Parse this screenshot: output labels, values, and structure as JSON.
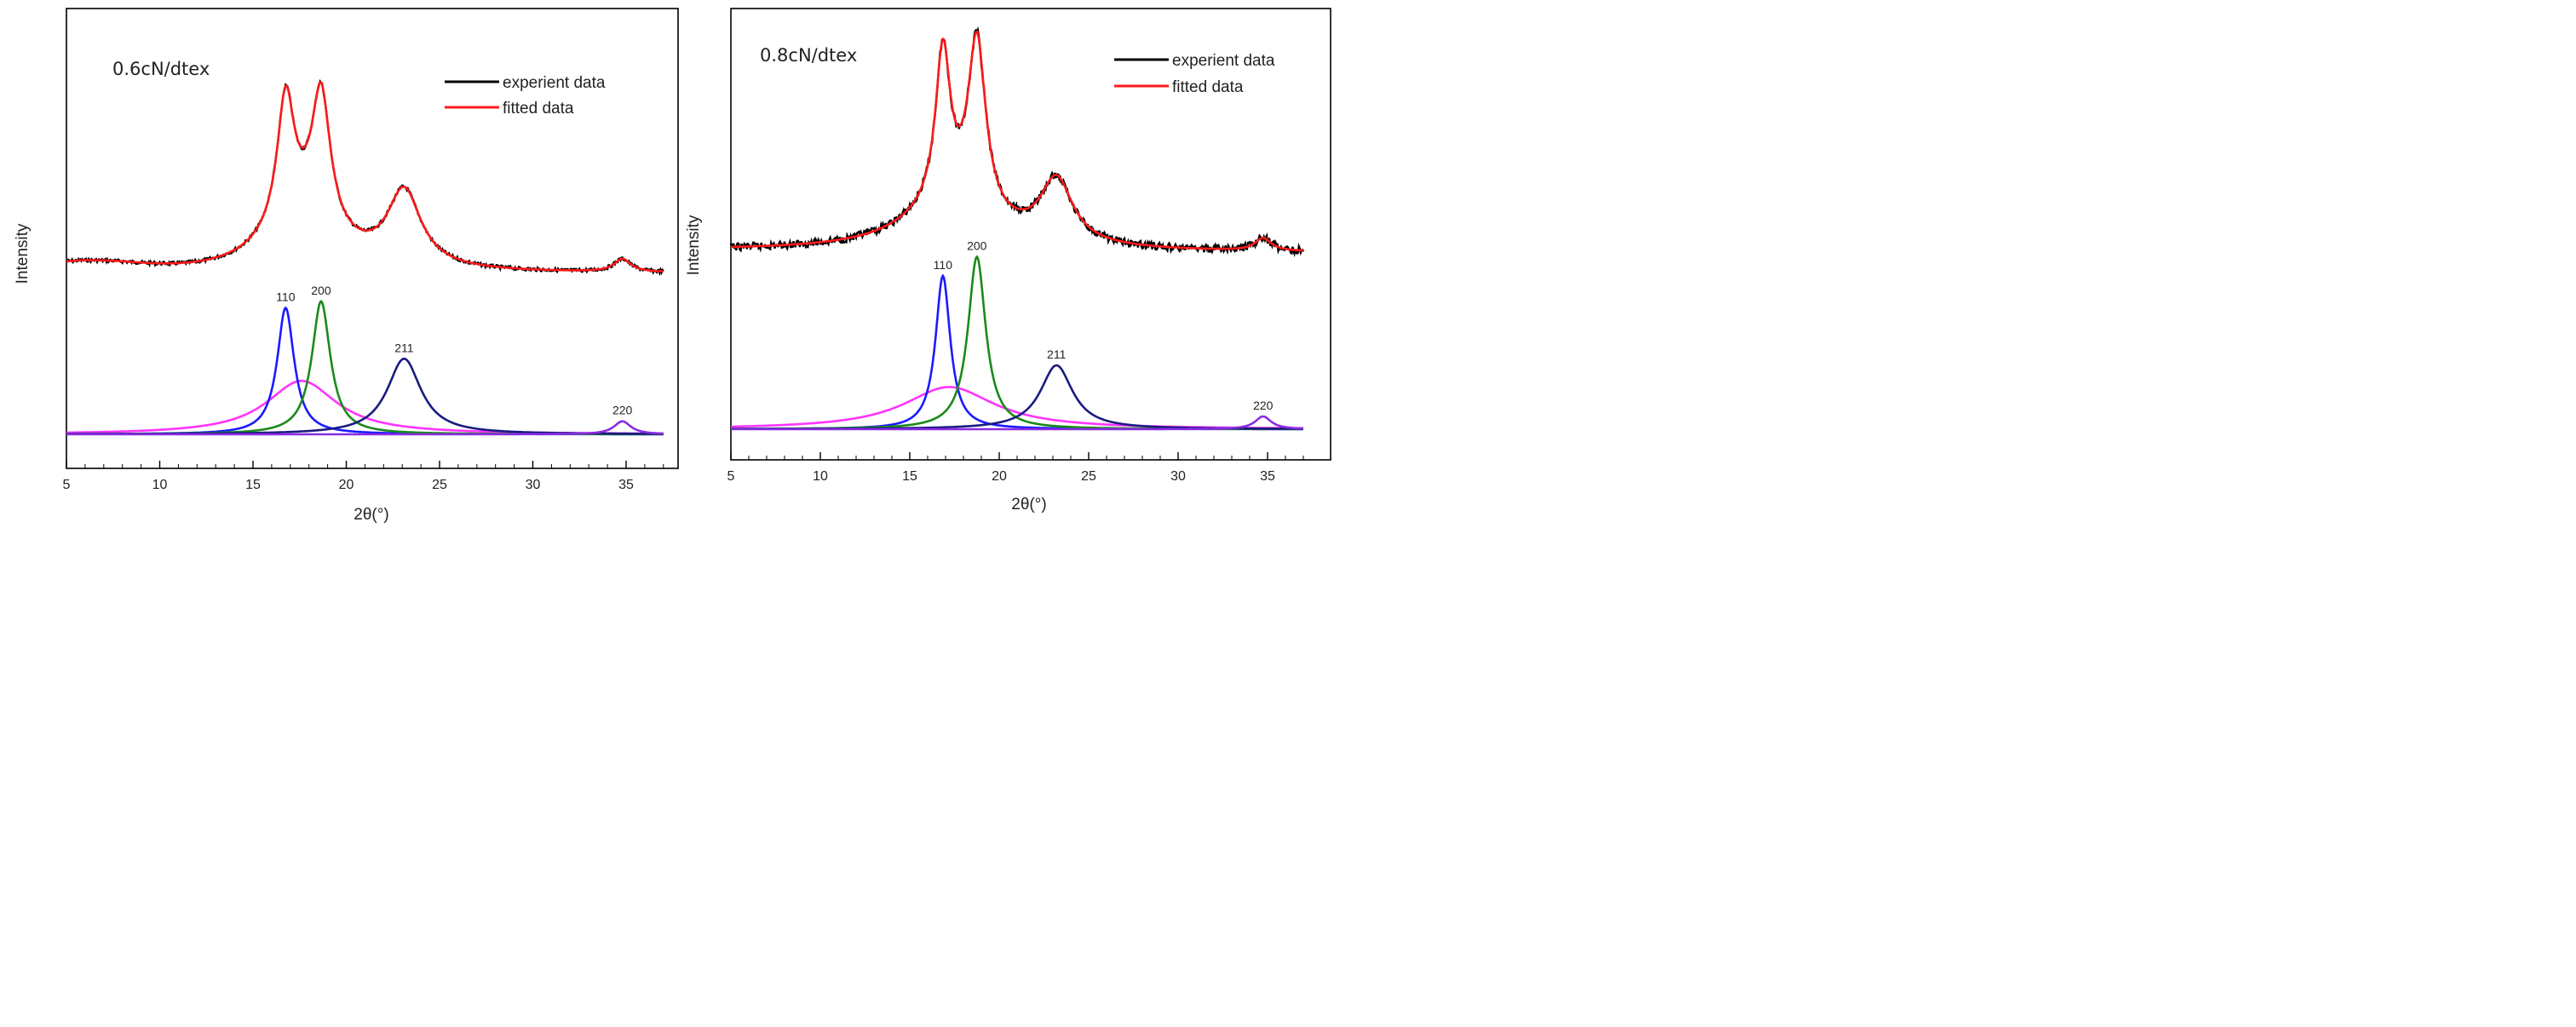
{
  "chart_data": [
    {
      "type": "line",
      "panel_label": "0.6cN/dtex",
      "xlabel": "2θ(°)",
      "ylabel": "Intensity",
      "xlim": [
        5,
        37
      ],
      "xticks": [
        5,
        10,
        15,
        20,
        25,
        30,
        35
      ],
      "legend": [
        {
          "name": "experient data",
          "color": "#000000"
        },
        {
          "name": "fitted data",
          "color": "#ff1a1a"
        }
      ],
      "legend_position": "top-right",
      "grid": false,
      "baseline": 0.22,
      "fit_peaks": [
        {
          "label": "",
          "center": 17.6,
          "height": 0.41,
          "width": 2.3,
          "color": "#ff33ff"
        },
        {
          "label": "110",
          "center": 16.75,
          "height": 0.97,
          "width": 0.55,
          "color": "#1a1aff"
        },
        {
          "label": "200",
          "center": 18.65,
          "height": 1.02,
          "width": 0.6,
          "color": "#1a8a1a"
        },
        {
          "label": "211",
          "center": 23.1,
          "height": 0.58,
          "width": 1.1,
          "color": "#1a1a80"
        },
        {
          "label": "220",
          "center": 34.8,
          "height": 0.1,
          "width": 0.55,
          "color": "#8a2be2"
        }
      ],
      "ylim": [
        0,
        3.2
      ]
    },
    {
      "type": "line",
      "panel_label": "0.8cN/dtex",
      "xlabel": "2θ(°)",
      "ylabel": "Intensity",
      "xlim": [
        5,
        37
      ],
      "xticks": [
        5,
        10,
        15,
        20,
        25,
        30,
        35
      ],
      "legend": [
        {
          "name": "experient data",
          "color": "#000000"
        },
        {
          "name": "fitted data",
          "color": "#ff1a1a"
        }
      ],
      "legend_position": "top-right",
      "grid": false,
      "baseline": 0.2,
      "fit_peaks": [
        {
          "label": "",
          "center": 17.2,
          "height": 0.33,
          "width": 3.1,
          "color": "#ff33ff"
        },
        {
          "label": "110",
          "center": 16.85,
          "height": 1.2,
          "width": 0.5,
          "color": "#1a1aff"
        },
        {
          "label": "200",
          "center": 18.75,
          "height": 1.35,
          "width": 0.6,
          "color": "#1a8a1a"
        },
        {
          "label": "211",
          "center": 23.2,
          "height": 0.5,
          "width": 1.1,
          "color": "#1a1a80"
        },
        {
          "label": "220",
          "center": 34.75,
          "height": 0.1,
          "width": 0.55,
          "color": "#8a2be2"
        }
      ],
      "ylim": [
        0,
        2.9
      ]
    }
  ]
}
